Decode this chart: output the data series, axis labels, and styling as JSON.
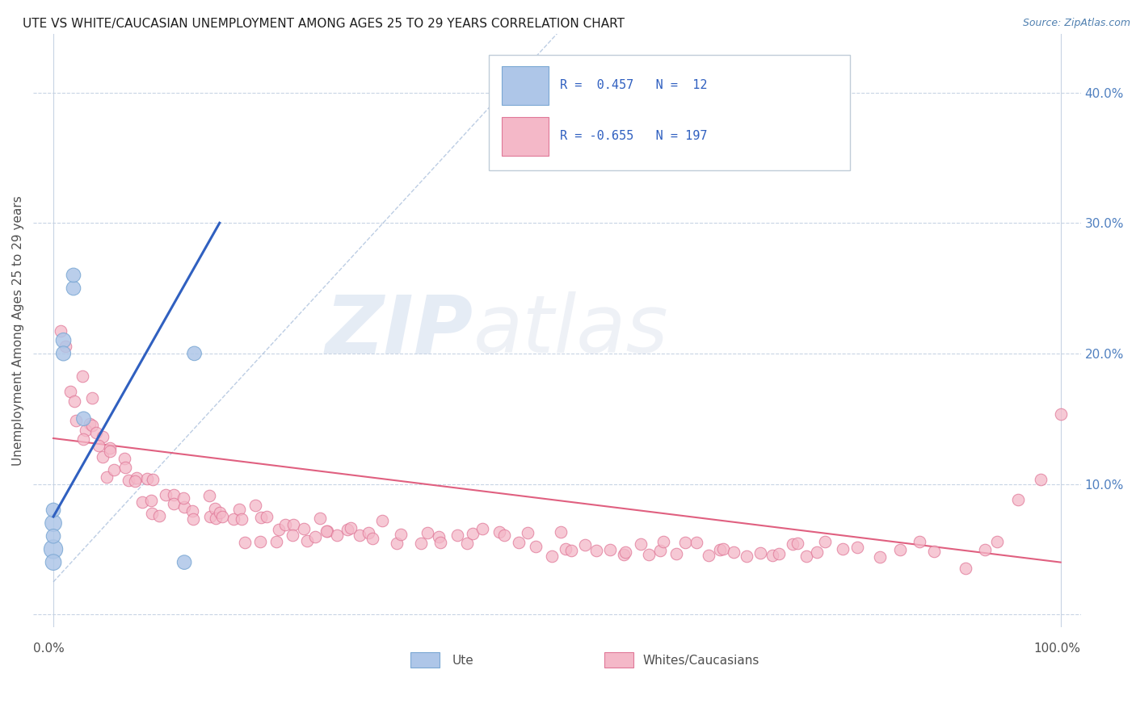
{
  "title": "UTE VS WHITE/CAUCASIAN UNEMPLOYMENT AMONG AGES 25 TO 29 YEARS CORRELATION CHART",
  "source_text": "Source: ZipAtlas.com",
  "ylabel": "Unemployment Among Ages 25 to 29 years",
  "ytick_labels": [
    "",
    "10.0%",
    "20.0%",
    "30.0%",
    "40.0%"
  ],
  "ytick_values": [
    0,
    0.1,
    0.2,
    0.3,
    0.4
  ],
  "xlim": [
    -0.02,
    1.02
  ],
  "ylim": [
    -0.01,
    0.445
  ],
  "watermark_zip": "ZIP",
  "watermark_atlas": "atlas",
  "ute_scatter_x": [
    0.0,
    0.0,
    0.0,
    0.0,
    0.0,
    0.01,
    0.01,
    0.02,
    0.02,
    0.03,
    0.13,
    0.14
  ],
  "ute_scatter_y": [
    0.05,
    0.07,
    0.04,
    0.06,
    0.08,
    0.21,
    0.2,
    0.25,
    0.26,
    0.15,
    0.04,
    0.2
  ],
  "white_scatter_x": [
    0.01,
    0.01,
    0.02,
    0.02,
    0.02,
    0.03,
    0.03,
    0.03,
    0.03,
    0.04,
    0.04,
    0.04,
    0.05,
    0.05,
    0.05,
    0.05,
    0.06,
    0.06,
    0.06,
    0.07,
    0.07,
    0.07,
    0.08,
    0.08,
    0.09,
    0.09,
    0.1,
    0.1,
    0.1,
    0.11,
    0.11,
    0.12,
    0.12,
    0.13,
    0.13,
    0.14,
    0.14,
    0.15,
    0.15,
    0.16,
    0.16,
    0.17,
    0.17,
    0.18,
    0.18,
    0.19,
    0.19,
    0.2,
    0.2,
    0.21,
    0.21,
    0.22,
    0.22,
    0.23,
    0.24,
    0.24,
    0.25,
    0.25,
    0.26,
    0.26,
    0.27,
    0.27,
    0.28,
    0.29,
    0.3,
    0.3,
    0.31,
    0.32,
    0.33,
    0.34,
    0.35,
    0.36,
    0.37,
    0.38,
    0.39,
    0.4,
    0.41,
    0.42,
    0.43,
    0.44,
    0.45,
    0.46,
    0.47,
    0.48,
    0.49,
    0.5,
    0.51,
    0.52,
    0.53,
    0.54,
    0.55,
    0.56,
    0.57,
    0.58,
    0.59,
    0.6,
    0.61,
    0.62,
    0.63,
    0.64,
    0.65,
    0.66,
    0.67,
    0.68,
    0.69,
    0.7,
    0.71,
    0.72,
    0.73,
    0.74,
    0.75,
    0.76,
    0.77,
    0.78,
    0.8,
    0.82,
    0.84,
    0.86,
    0.88,
    0.9,
    0.92,
    0.94,
    0.96,
    0.98,
    1.0
  ],
  "white_scatter_y": [
    0.2,
    0.22,
    0.17,
    0.16,
    0.15,
    0.18,
    0.15,
    0.14,
    0.13,
    0.16,
    0.15,
    0.14,
    0.14,
    0.13,
    0.12,
    0.11,
    0.13,
    0.12,
    0.11,
    0.12,
    0.11,
    0.1,
    0.11,
    0.1,
    0.1,
    0.09,
    0.1,
    0.09,
    0.08,
    0.09,
    0.08,
    0.09,
    0.08,
    0.08,
    0.09,
    0.08,
    0.07,
    0.09,
    0.08,
    0.08,
    0.07,
    0.08,
    0.07,
    0.07,
    0.08,
    0.07,
    0.06,
    0.07,
    0.08,
    0.07,
    0.06,
    0.07,
    0.06,
    0.07,
    0.07,
    0.06,
    0.07,
    0.06,
    0.07,
    0.06,
    0.06,
    0.07,
    0.06,
    0.06,
    0.06,
    0.07,
    0.06,
    0.06,
    0.07,
    0.06,
    0.06,
    0.06,
    0.06,
    0.06,
    0.06,
    0.06,
    0.06,
    0.06,
    0.06,
    0.06,
    0.06,
    0.06,
    0.06,
    0.05,
    0.05,
    0.06,
    0.05,
    0.05,
    0.05,
    0.05,
    0.05,
    0.05,
    0.05,
    0.05,
    0.05,
    0.05,
    0.05,
    0.05,
    0.05,
    0.05,
    0.05,
    0.05,
    0.05,
    0.05,
    0.05,
    0.05,
    0.05,
    0.05,
    0.05,
    0.05,
    0.05,
    0.05,
    0.05,
    0.05,
    0.05,
    0.05,
    0.05,
    0.05,
    0.05,
    0.04,
    0.05,
    0.05,
    0.09,
    0.1,
    0.15
  ],
  "ute_color": "#aec6e8",
  "ute_edge_color": "#7ba8d4",
  "white_color": "#f4b8c8",
  "white_edge_color": "#e07898",
  "ute_trend_color": "#3060c0",
  "white_trend_color": "#e06080",
  "dashed_line_color": "#a0b8d8",
  "grid_color": "#c8d4e4",
  "title_color": "#202020",
  "source_color": "#5080b0",
  "tick_label_color": "#5080c0",
  "ylabel_color": "#505050",
  "background_color": "#ffffff",
  "legend_r1_color": "#3060c0",
  "legend_r2_color": "#3060c0",
  "legend_border_color": "#c0ccd8",
  "bottom_label_color": "#505050"
}
